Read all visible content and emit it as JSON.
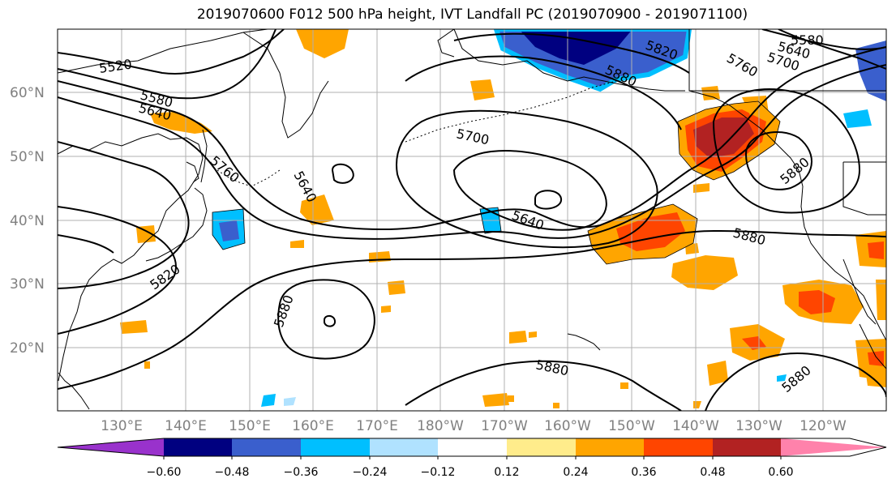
{
  "title": "2019070600 F012 500 hPa height, IVT Landfall PC (2019070900 - 2019071100)",
  "map": {
    "lat_labels": [
      "60°N",
      "50°N",
      "40°N",
      "30°N",
      "20°N"
    ],
    "lon_labels": [
      "130°E",
      "140°E",
      "150°E",
      "160°E",
      "170°E",
      "180°W",
      "170°W",
      "160°W",
      "150°W",
      "140°W",
      "130°W",
      "120°W"
    ],
    "contour_labels": [
      "5520",
      "5580",
      "5640",
      "5760",
      "5640",
      "5820",
      "5700",
      "5880",
      "5640",
      "5880",
      "5880",
      "5880",
      "5820",
      "5760",
      "5700",
      "5640",
      "5580",
      "5880",
      "5880"
    ]
  },
  "colorbar": {
    "ticks": [
      "−0.60",
      "−0.48",
      "−0.36",
      "−0.24",
      "−0.12",
      "0.12",
      "0.24",
      "0.36",
      "0.48",
      "0.60"
    ],
    "colors": [
      "#9932CC",
      "#000080",
      "#3A5FCD",
      "#00BFFF",
      "#B0E2FF",
      "#FFFFFF",
      "#FFEC8B",
      "#FFA500",
      "#FF4500",
      "#B22222",
      "#FF82AB"
    ]
  }
}
